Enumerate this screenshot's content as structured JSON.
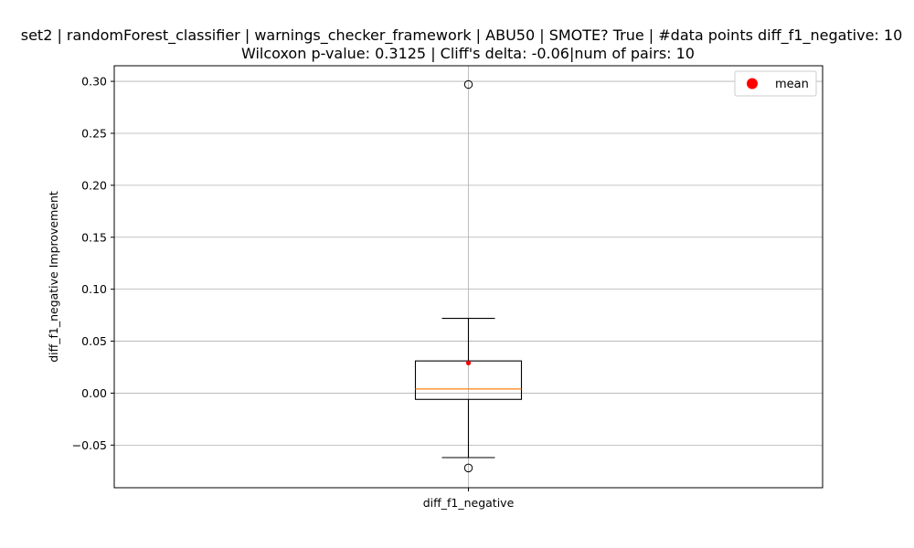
{
  "chart_data": {
    "type": "box",
    "title_line1": "set2 | randomForest_classifier | warnings_checker_framework | ABU50 | SMOTE? True | #data points diff_f1_negative: 10",
    "title_line2": "Wilcoxon p-value: 0.3125 | Cliff's delta: -0.06|num of pairs: 10",
    "xlabel": "",
    "ylabel": "diff_f1_negative Improvement",
    "categories": [
      "diff_f1_negative"
    ],
    "ylim": [
      -0.091,
      0.315
    ],
    "yticks": [
      -0.05,
      0.0,
      0.05,
      0.1,
      0.15,
      0.2,
      0.25,
      0.3
    ],
    "ytick_labels": [
      "−0.05",
      "0.00",
      "0.05",
      "0.10",
      "0.15",
      "0.20",
      "0.25",
      "0.30"
    ],
    "grid": true,
    "legend": {
      "placement": "top-right",
      "entries": [
        {
          "name": "mean",
          "color": "#ff0000"
        }
      ]
    },
    "boxes": [
      {
        "category": "diff_f1_negative",
        "q1": -0.006,
        "median": 0.004,
        "q3": 0.031,
        "whisker_low": -0.062,
        "whisker_high": 0.072,
        "mean": 0.029,
        "outliers": [
          0.297,
          -0.072
        ]
      }
    ],
    "colors": {
      "box": "#000000",
      "median": "#ff7f0e",
      "mean": "#ff0000",
      "grid": "#b0b0b0"
    }
  }
}
